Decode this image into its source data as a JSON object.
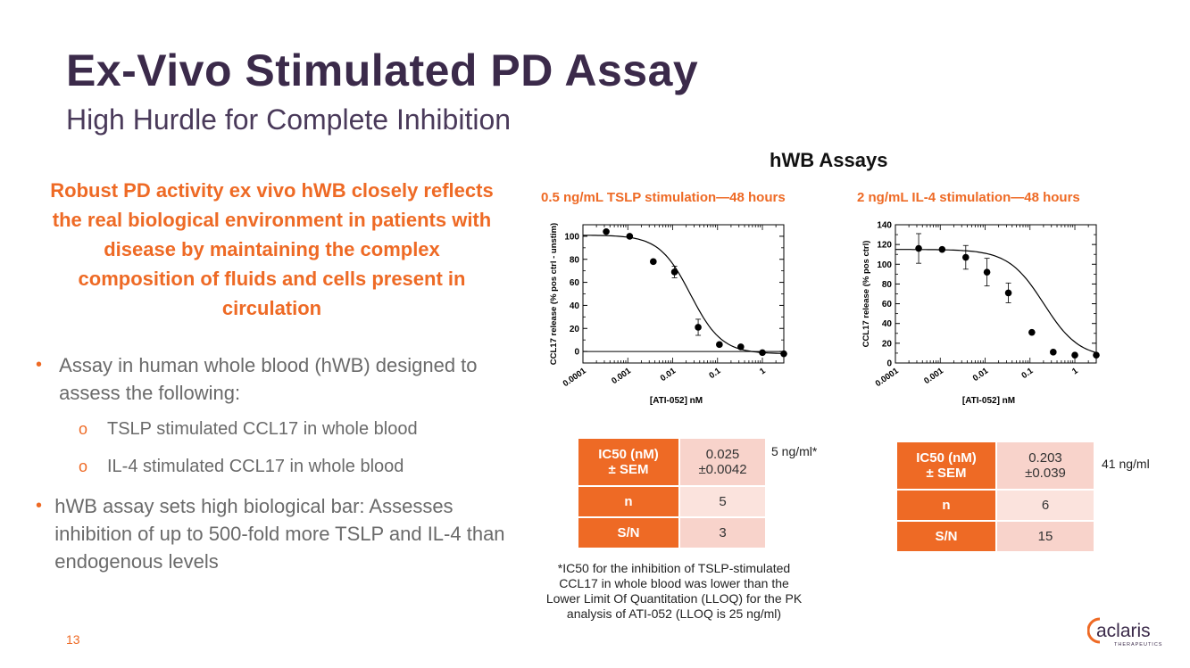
{
  "slide": {
    "title": "Ex-Vivo Stimulated PD Assay",
    "subtitle": "High Hurdle for Complete Inhibition",
    "section_title": "hWB Assays",
    "lead": "Robust PD activity ex vivo hWB closely reflects the real biological environment in patients with disease by maintaining the complex composition of fluids and cells present in circulation",
    "bullets": [
      {
        "text": "Assay in human whole blood (hWB) designed to assess the following:",
        "sub": [
          "TSLP stimulated CCL17 in whole blood",
          "IL-4 stimulated CCL17 in whole blood"
        ]
      },
      {
        "text": "hWB assay sets high biological bar: Assesses inhibition of up to 500-fold more TSLP and IL-4 than endogenous levels"
      }
    ],
    "bullet_glyph": "•",
    "sub_bullet_glyph": "o",
    "page_number": "13",
    "footnote": "*IC50 for the inhibition of TSLP-stimulated CCL17 in whole blood was lower than the Lower Limit Of Quantitation (LLOQ) for the PK analysis of ATI-052 (LLOQ is 25 ng/ml)",
    "logo": {
      "text": "aclaris",
      "tagline": "THERAPEUTICS",
      "mark_color": "#ee6a25",
      "text_color": "#3b2a4a"
    },
    "colors": {
      "accent": "#ee6a25",
      "title": "#3b2a4a",
      "cell_light": "#f8d3cb"
    }
  },
  "chart_data": [
    {
      "type": "scatter",
      "title": "0.5 ng/mL TSLP stimulation—48 hours",
      "xlabel": "[ATI-052] nM",
      "ylabel": "CCL17 release (% pos ctrl - unstim)",
      "xscale": "log",
      "xlim": [
        0.0001,
        3
      ],
      "ylim": [
        -10,
        110
      ],
      "xticks": [
        "0.0001",
        "0.001",
        "0.01",
        "0.1",
        "1"
      ],
      "yticks": [
        0,
        20,
        40,
        60,
        80,
        100
      ],
      "x": [
        0.00033,
        0.0011,
        0.0037,
        0.011,
        0.037,
        0.11,
        0.33,
        1.0,
        3.0
      ],
      "y": [
        104,
        100,
        78,
        69,
        21,
        6,
        4,
        -1,
        -2
      ],
      "yerr": [
        0,
        0,
        0,
        5,
        7,
        0,
        0,
        0,
        0
      ],
      "fit": {
        "top": 101,
        "bottom": -2,
        "ic50": 0.025,
        "hill": 1.25
      },
      "zero_line": true,
      "table": {
        "rows": [
          {
            "label": "IC50 (nM)\n± SEM",
            "value": "0.025\n±0.0042"
          },
          {
            "label": "n",
            "value": "5"
          },
          {
            "label": "S/N",
            "value": "3"
          }
        ],
        "note": "5 ng/ml*"
      }
    },
    {
      "type": "scatter",
      "title": "2 ng/mL IL-4 stimulation—48 hours",
      "xlabel": "[ATI-052] nM",
      "ylabel": "CCL17 release (% pos ctrl)",
      "xscale": "log",
      "xlim": [
        0.0001,
        3
      ],
      "ylim": [
        0,
        140
      ],
      "xticks": [
        "0.0001",
        "0.001",
        "0.01",
        "0.1",
        "1"
      ],
      "yticks": [
        0,
        20,
        40,
        60,
        80,
        100,
        120,
        140
      ],
      "x": [
        0.00033,
        0.0011,
        0.0037,
        0.011,
        0.033,
        0.11,
        0.33,
        1.0,
        3.0
      ],
      "y": [
        116,
        115,
        107,
        92,
        71,
        31,
        11,
        8,
        8
      ],
      "yerr": [
        15,
        0,
        12,
        14,
        10,
        0,
        0,
        0,
        0
      ],
      "fit": {
        "top": 115,
        "bottom": 5,
        "ic50": 0.203,
        "hill": 1.1
      },
      "zero_line": false,
      "table": {
        "rows": [
          {
            "label": "IC50 (nM)\n± SEM",
            "value": "0.203\n±0.039"
          },
          {
            "label": "n",
            "value": "6"
          },
          {
            "label": "S/N",
            "value": "15"
          }
        ],
        "note": "41 ng/ml"
      }
    }
  ]
}
